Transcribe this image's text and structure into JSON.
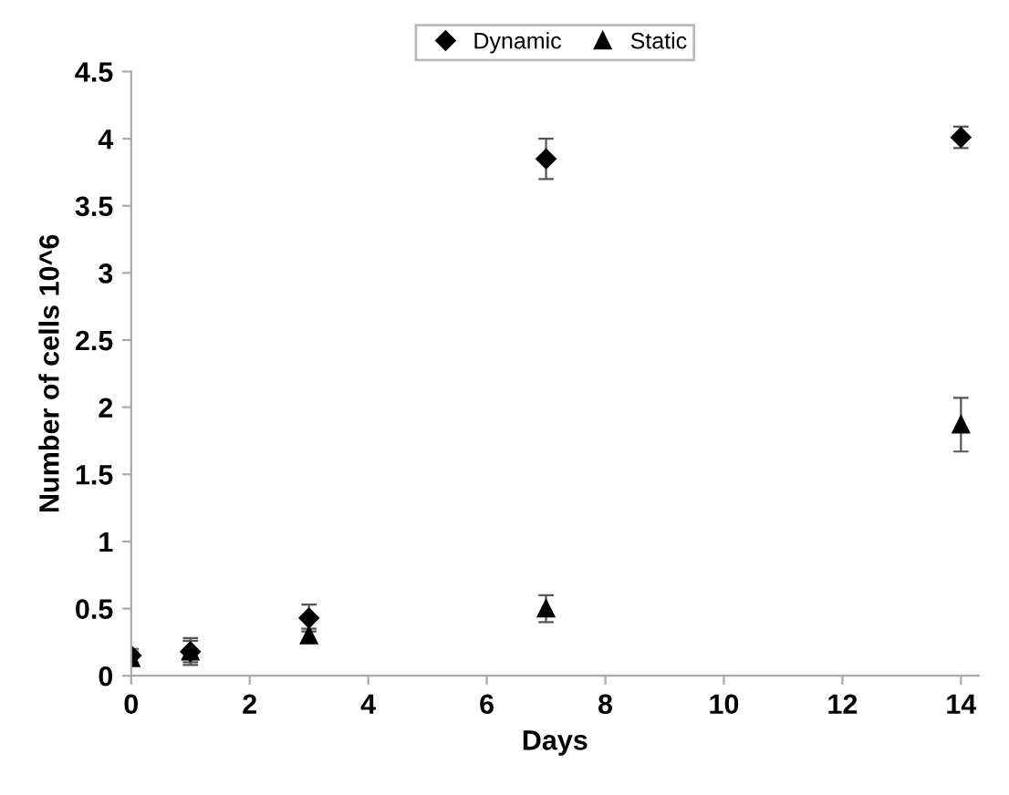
{
  "chart_data": {
    "type": "scatter",
    "xlabel": "Days",
    "ylabel": "Number of cells 10^6",
    "x": [
      0,
      1,
      3,
      7,
      14
    ],
    "series": [
      {
        "name": "Dynamic",
        "color": "#000000",
        "marker": "diamond",
        "values": [
          0.15,
          0.18,
          0.43,
          3.85,
          4.01
        ],
        "errors": [
          0.05,
          0.1,
          0.1,
          0.15,
          0.08
        ]
      },
      {
        "name": "Static",
        "color": "#000000",
        "marker": "triangle",
        "values": [
          0.13,
          0.18,
          0.3,
          0.5,
          1.87
        ],
        "errors": [
          0.05,
          0.08,
          0.05,
          0.1,
          0.2
        ]
      }
    ],
    "xlim": [
      0,
      14.3
    ],
    "xticks": [
      0,
      2,
      4,
      6,
      8,
      10,
      12,
      14
    ],
    "ylim": [
      0,
      4.5
    ],
    "yticks": [
      0,
      0.5,
      1,
      1.5,
      2,
      2.5,
      3,
      3.5,
      4,
      4.5
    ],
    "grid": false,
    "legend": "top"
  }
}
